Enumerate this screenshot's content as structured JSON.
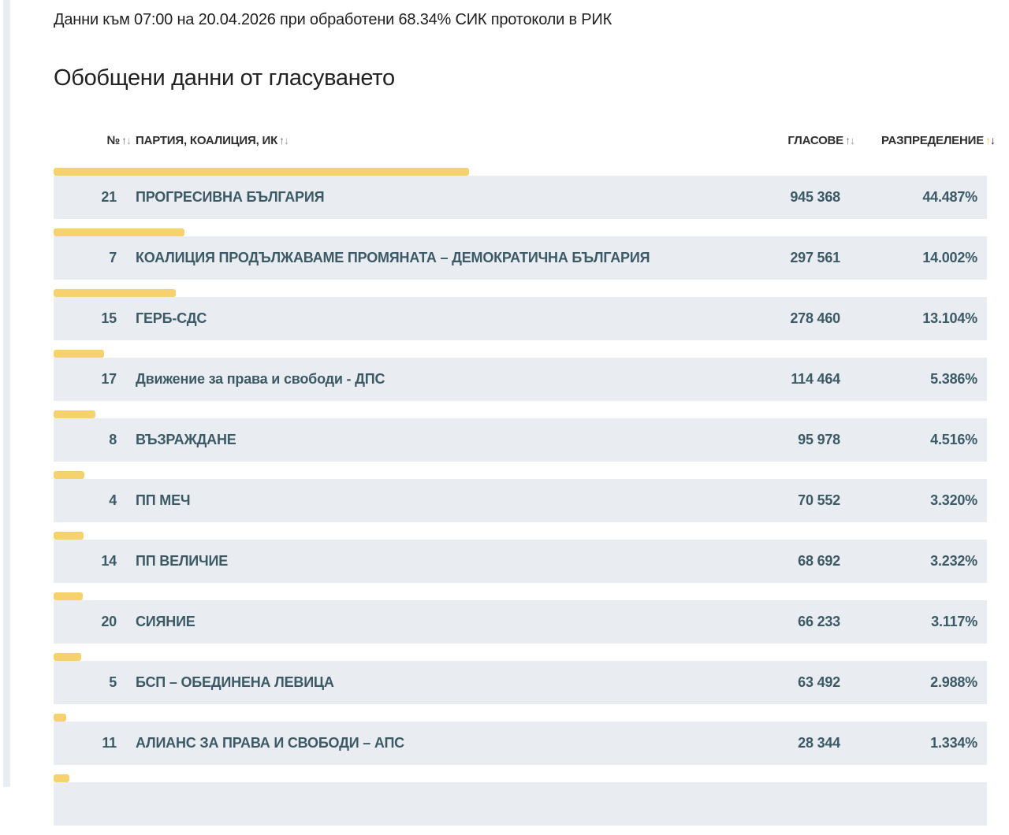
{
  "status_line": "Данни към 07:00 на 20.04.2026 при обработени 68.34% СИК протоколи в РИК",
  "page_title": "Обобщени данни от гласуването",
  "icons": {
    "sort_up_icon": "↑",
    "sort_down_icon": "↓"
  },
  "colors": {
    "accent_bar_yellow": "#f5d26e",
    "active_sort_arrow_yellow": "#efc44f",
    "row_background": "#e9edf1",
    "row_text": "#3c5a66"
  },
  "table": {
    "headers": {
      "number": "№",
      "party": "ПАРТИЯ, КОАЛИЦИЯ, ИК",
      "votes": "ГЛАСОВЕ",
      "distribution": "РАЗПРЕДЕЛЕНИЕ"
    },
    "sort": {
      "active_column": "distribution",
      "direction": "desc"
    },
    "rows": [
      {
        "number": "21",
        "party": "ПРОГРЕСИВНА БЪЛГАРИЯ",
        "votes": "945 368",
        "percent": "44.487%"
      },
      {
        "number": "7",
        "party": "КОАЛИЦИЯ ПРОДЪЛЖАВАМЕ ПРОМЯНАТА – ДЕМОКРАТИЧНА БЪЛГАРИЯ",
        "votes": "297 561",
        "percent": "14.002%"
      },
      {
        "number": "15",
        "party": "ГЕРБ-СДС",
        "votes": "278 460",
        "percent": "13.104%"
      },
      {
        "number": "17",
        "party": "Движение за права и свободи - ДПС",
        "votes": "114 464",
        "percent": "5.386%"
      },
      {
        "number": "8",
        "party": "ВЪЗРАЖДАНЕ",
        "votes": "95 978",
        "percent": "4.516%"
      },
      {
        "number": "4",
        "party": "ПП МЕЧ",
        "votes": "70 552",
        "percent": "3.320%"
      },
      {
        "number": "14",
        "party": "ПП ВЕЛИЧИЕ",
        "votes": "68 692",
        "percent": "3.232%"
      },
      {
        "number": "20",
        "party": "СИЯНИЕ",
        "votes": "66 233",
        "percent": "3.117%"
      },
      {
        "number": "5",
        "party": "БСП – ОБЕДИНЕНА ЛЕВИЦА",
        "votes": "63 492",
        "percent": "2.988%"
      },
      {
        "number": "11",
        "party": "АЛИАНС ЗА ПРАВА И СВОБОДИ – АПС",
        "votes": "28 344",
        "percent": "1.334%"
      }
    ],
    "partial_next_row": {
      "bar_percent_estimate": 1.7
    }
  }
}
